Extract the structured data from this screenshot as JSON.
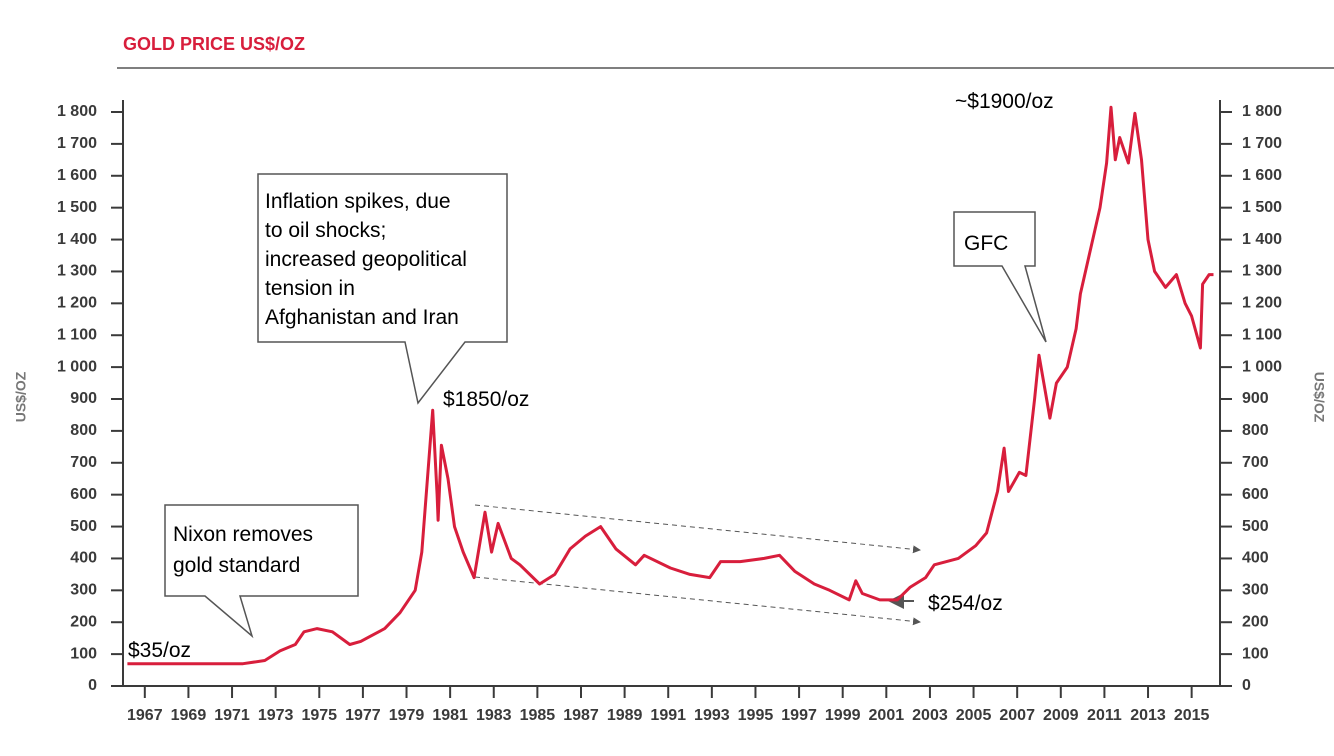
{
  "chart_data": {
    "type": "line",
    "title": "GOLD PRICE US$/OZ",
    "ylabel": "US$/OZ",
    "xlim": [
      1966,
      2016.3
    ],
    "xticks": [
      1967,
      1969,
      1971,
      1973,
      1975,
      1977,
      1979,
      1981,
      1983,
      1985,
      1987,
      1989,
      1991,
      1993,
      1995,
      1997,
      1999,
      2001,
      2003,
      2005,
      2007,
      2009,
      2011,
      2013,
      2015
    ],
    "ylim": [
      0,
      1800
    ],
    "yticks": [
      0,
      100,
      200,
      300,
      400,
      500,
      600,
      700,
      800,
      900,
      {
        "value": 1000,
        "label": "1 000"
      },
      {
        "value": 1100,
        "label": "1 100"
      },
      {
        "value": 1200,
        "label": "1 200"
      },
      {
        "value": 1300,
        "label": "1 300"
      },
      {
        "value": 1400,
        "label": "1 400"
      },
      {
        "value": 1500,
        "label": "1 500"
      },
      {
        "value": 1600,
        "label": "1 600"
      },
      {
        "value": 1700,
        "label": "1 700"
      },
      {
        "value": 1800,
        "label": "1 800"
      }
    ],
    "series": [
      {
        "color": "#d81e3c",
        "x": [
          1966.2,
          1971.5,
          1972.5,
          1973.2,
          1973.9,
          1974.3,
          1974.9,
          1975.6,
          1976.4,
          1976.9,
          1978.0,
          1978.7,
          1979.4,
          1979.7,
          1980.2,
          1980.4,
          1980.45,
          1980.6,
          1980.9,
          1981.2,
          1981.6,
          1982.1,
          1982.6,
          1982.9,
          1983.2,
          1983.8,
          1984.2,
          1985.1,
          1985.8,
          1986.5,
          1987.2,
          1987.9,
          1988.6,
          1989.5,
          1989.9,
          1991.1,
          1992.0,
          1992.9,
          1993.4,
          1994.3,
          1995.4,
          1996.1,
          1996.8,
          1997.7,
          1998.4,
          1999.3,
          1999.6,
          1999.9,
          2000.7,
          2001.5,
          2002.1,
          2002.8,
          2003.2,
          2004.3,
          2005.1,
          2005.6,
          2006.1,
          2006.4,
          2006.6,
          2007.1,
          2007.4,
          2007.8,
          2008.0,
          2008.3,
          2008.5,
          2008.8,
          2009.3,
          2009.7,
          2009.9,
          2010.4,
          2010.8,
          2011.1,
          2011.3,
          2011.5,
          2011.7,
          2012.1,
          2012.4,
          2012.7,
          2013.0,
          2013.3,
          2013.8,
          2014.3,
          2014.7,
          2015.0,
          2015.4,
          2015.5,
          2015.8,
          2016.0
        ],
        "values": [
          70,
          70,
          80,
          110,
          130,
          170,
          180,
          170,
          130,
          140,
          180,
          230,
          300,
          420,
          865,
          600,
          520,
          755,
          650,
          500,
          420,
          340,
          545,
          420,
          510,
          400,
          380,
          320,
          350,
          430,
          470,
          500,
          430,
          380,
          410,
          370,
          350,
          340,
          390,
          390,
          400,
          410,
          360,
          320,
          300,
          270,
          330,
          290,
          270,
          270,
          310,
          340,
          380,
          400,
          440,
          480,
          610,
          746,
          610,
          670,
          660,
          900,
          1037,
          920,
          840,
          950,
          1000,
          1120,
          1230,
          1380,
          1500,
          1640,
          1815,
          1650,
          1720,
          1640,
          1796,
          1650,
          1400,
          1300,
          1250,
          1290,
          1200,
          1160,
          1060,
          1260,
          1290,
          1290
        ]
      }
    ],
    "annotations": [
      "$35/oz",
      "$1850/oz",
      "$254/oz",
      "~$1900/oz"
    ],
    "callouts": [
      [
        "Nixon removes",
        "gold standard"
      ],
      [
        "Inflation spikes, due",
        "to oil shocks;",
        "increased geopolitical",
        "tension in",
        "Afghanistan and Iran"
      ],
      [
        "GFC"
      ]
    ]
  }
}
